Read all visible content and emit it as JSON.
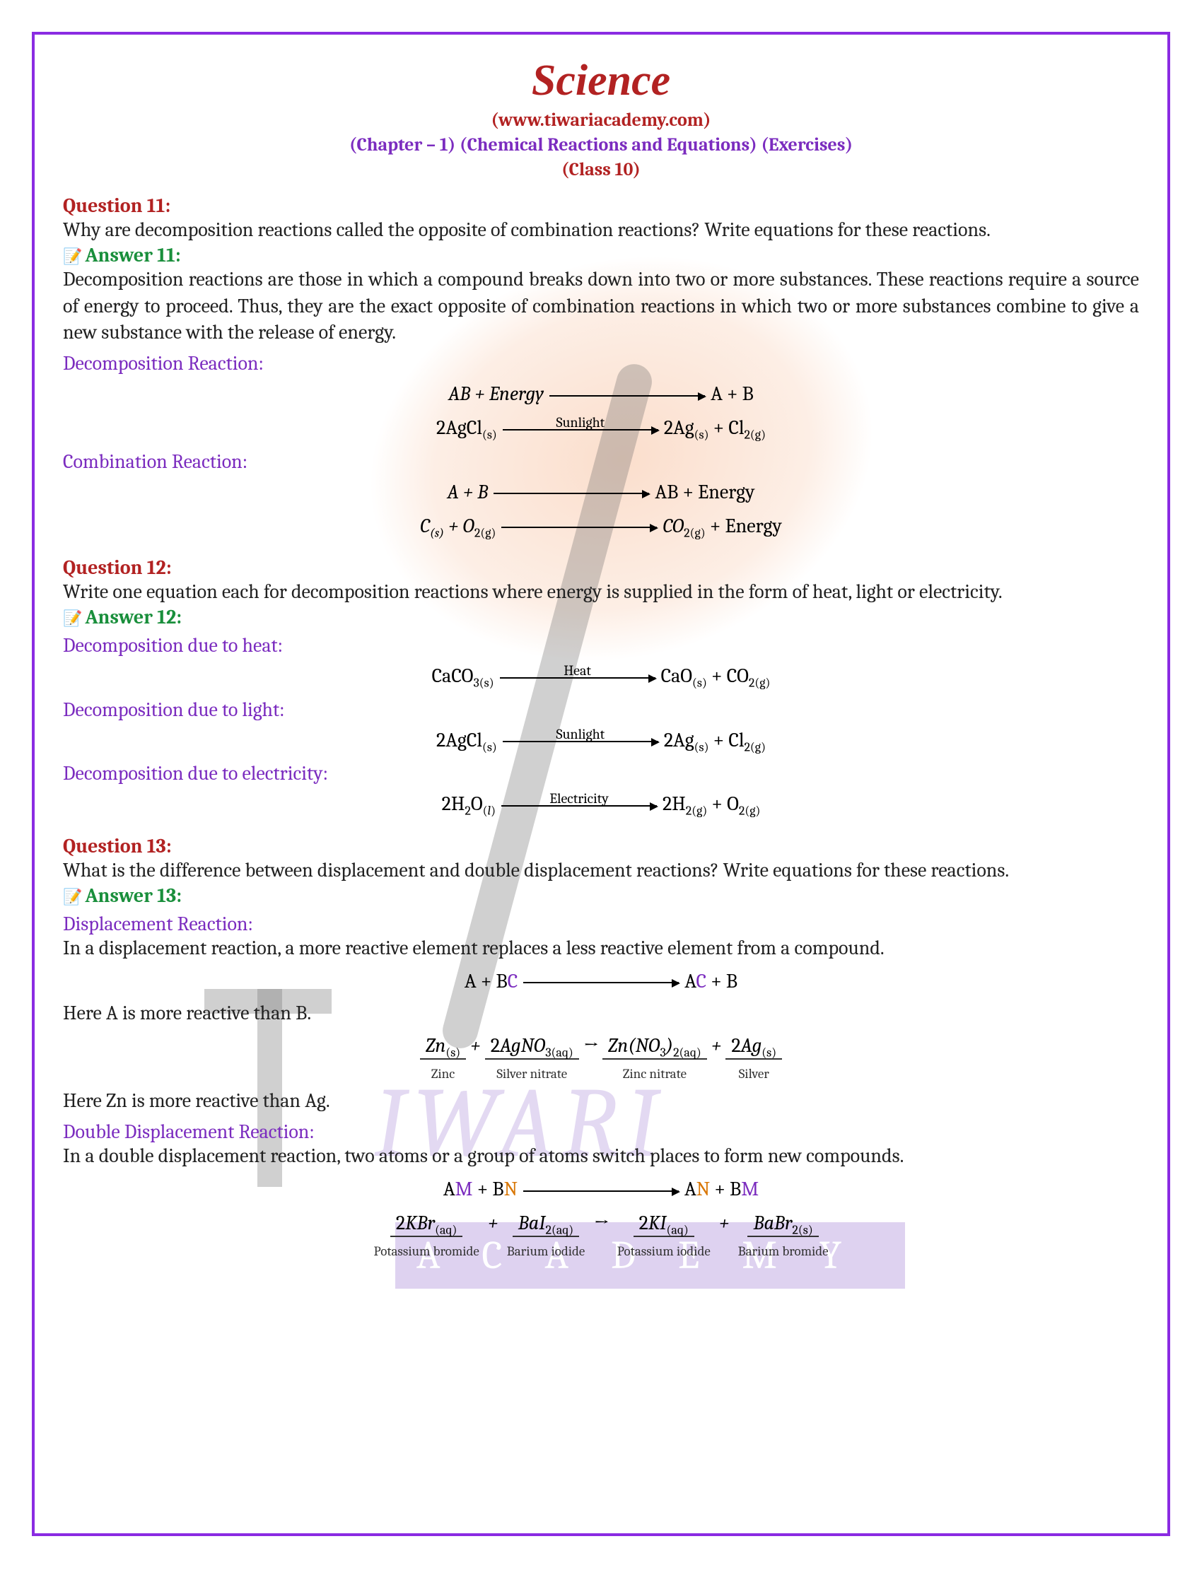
{
  "header": {
    "title": "Science",
    "website": "(www.tiwariacademy.com)",
    "chapter": "(Chapter – 1) (Chemical Reactions and Equations) (Exercises)",
    "class": "(Class 10)"
  },
  "q11": {
    "label": "Question 11:",
    "text": "Why are decomposition reactions called the opposite of combination reactions? Write equations for these reactions.",
    "answer_label": "Answer 11:",
    "answer": "Decomposition reactions are those in which a compound breaks down into two or more substances. These reactions require a source of energy to proceed. Thus, they are the exact opposite of combination reactions in which two or more substances combine to give a new substance with the release of energy.",
    "sub1": "Decomposition Reaction:",
    "sub2": "Combination Reaction:",
    "eq1_lhs": "AB + Energy",
    "eq1_rhs": "A + B",
    "eq2_lhs": "2AgCl",
    "eq2_cond": "Sunlight",
    "eq2_rhs_a": "2Ag",
    "eq2_rhs_b": "+ Cl",
    "eq3_lhs": "A + B",
    "eq3_rhs": "AB + Energy",
    "eq4_lhs": "C",
    "eq4_mid": "+ O",
    "eq4_rhs": "CO",
    "eq4_end": "+ Energy"
  },
  "q12": {
    "label": "Question 12:",
    "text": "Write one equation each for decomposition reactions where energy is supplied in the form of heat, light or electricity.",
    "answer_label": "Answer 12:",
    "sub1": "Decomposition due to heat:",
    "sub2": "Decomposition due to light:",
    "sub3": "Decomposition due to electricity:",
    "eq1_lhs": "CaCO",
    "eq1_cond": "Heat",
    "eq1_rhs_a": "CaO",
    "eq1_rhs_b": "+ CO",
    "eq2_lhs": "2AgCl",
    "eq2_cond": "Sunlight",
    "eq2_rhs_a": "2Ag",
    "eq2_rhs_b": "+ Cl",
    "eq3_lhs": "2H",
    "eq3_lhs2": "O",
    "eq3_cond": "Electricity",
    "eq3_rhs_a": "2H",
    "eq3_rhs_b": "+ O"
  },
  "q13": {
    "label": "Question 13:",
    "text": "What is the difference between displacement and double displacement reactions? Write equations for these reactions.",
    "answer_label": "Answer 13:",
    "sub1": "Displacement Reaction:",
    "text1": "In a displacement reaction, a more reactive element replaces a less reactive element from a compound.",
    "eq1": "A + BC → AC + B",
    "note1": "Here A is more reactive than B.",
    "note2": "Here Zn is more reactive than Ag.",
    "sub2": "Double Displacement Reaction:",
    "text2": "In a double displacement reaction, two atoms or a group of atoms switch places to form new compounds.",
    "labels": {
      "zn": "Zinc",
      "agno3": "Silver nitrate",
      "znno3": "Zinc nitrate",
      "ag": "Silver",
      "kbr": "Potassium bromide",
      "bai": "Barium iodide",
      "ki": "Potassium iodide",
      "babr": "Barium bromide"
    }
  },
  "watermark": {
    "text1": "IWARI",
    "text2": "ACADEMY"
  },
  "colors": {
    "border": "#8a2be2",
    "question": "#b22222",
    "answer": "#1a8f3c",
    "subhead": "#7b2cbf",
    "leaf": "#f8c8aa"
  }
}
